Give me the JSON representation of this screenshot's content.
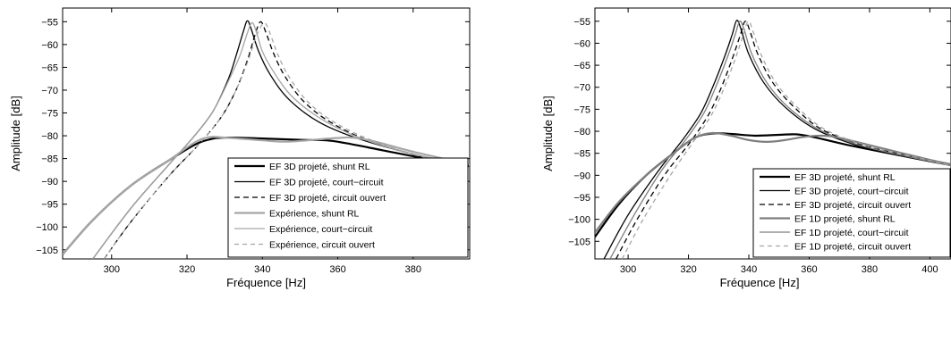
{
  "chart_data": [
    {
      "type": "line",
      "xlabel": "Fréquence [Hz]",
      "ylabel": "Amplitude [dB]",
      "xlim": [
        287,
        395
      ],
      "ylim": [
        -107,
        -52
      ],
      "xticks": [
        300,
        320,
        340,
        360,
        380
      ],
      "yticks": [
        -105,
        -100,
        -95,
        -90,
        -85,
        -80,
        -75,
        -70,
        -65,
        -60,
        -55
      ],
      "grid": false,
      "legend_position": "bottom-right",
      "series": [
        {
          "name": "EF 3D projeté, shunt RL",
          "color": "#000000",
          "dash": "solid",
          "width": 2.2,
          "x": [
            287,
            295,
            305,
            315,
            322,
            326,
            330,
            340,
            350,
            357,
            362,
            372,
            382,
            395
          ],
          "y": [
            -106,
            -98.5,
            -91,
            -85.5,
            -82,
            -80.8,
            -80.4,
            -80.6,
            -80.9,
            -81,
            -81.6,
            -83.2,
            -84.8,
            -86.6
          ]
        },
        {
          "name": "EF 3D projeté, court−circuit",
          "color": "#000000",
          "dash": "solid",
          "width": 1.3,
          "x": [
            295,
            305,
            315,
            322,
            327,
            331,
            333,
            335,
            336,
            337,
            339,
            342,
            347,
            355,
            365,
            380,
            395
          ],
          "y": [
            -107,
            -96,
            -86.5,
            -80,
            -74.5,
            -67.5,
            -62.5,
            -57,
            -54.8,
            -56.5,
            -61.5,
            -66.5,
            -72,
            -77,
            -80.5,
            -84,
            -86.6
          ]
        },
        {
          "name": "EF 3D projeté, circuit ouvert",
          "color": "#000000",
          "dash": "6,4",
          "width": 1.3,
          "x": [
            298,
            305,
            315,
            323,
            329,
            333,
            336,
            338,
            339.5,
            341,
            343,
            346,
            351,
            358,
            368,
            382,
            395
          ],
          "y": [
            -107,
            -99,
            -89,
            -82,
            -76,
            -70,
            -63.5,
            -58,
            -55,
            -57.5,
            -62,
            -67,
            -72.5,
            -77,
            -81,
            -84.5,
            -86.8
          ]
        },
        {
          "name": "Expérience, shunt RL",
          "color": "#a6a6a6",
          "dash": "solid",
          "width": 2.2,
          "x": [
            287,
            295,
            305,
            315,
            322,
            326,
            330,
            340,
            346,
            352,
            358,
            364,
            370,
            380,
            395
          ],
          "y": [
            -106,
            -98.5,
            -91,
            -85.5,
            -81.5,
            -80.3,
            -80.4,
            -81,
            -81.3,
            -81,
            -80.6,
            -80.4,
            -81.3,
            -83.5,
            -86.3
          ]
        },
        {
          "name": "Expérience, court−circuit",
          "color": "#a6a6a6",
          "dash": "solid",
          "width": 1.3,
          "x": [
            295,
            305,
            315,
            322,
            327,
            331,
            334,
            336,
            337.3,
            338.5,
            340,
            343,
            348,
            356,
            366,
            380,
            395
          ],
          "y": [
            -107,
            -96,
            -86.5,
            -80,
            -74.5,
            -68,
            -62.5,
            -57.5,
            -55.2,
            -57.5,
            -61.5,
            -66,
            -71.5,
            -76.5,
            -80.5,
            -84,
            -86.4
          ]
        },
        {
          "name": "Expérience, circuit ouvert",
          "color": "#a6a6a6",
          "dash": "5,4",
          "width": 1.3,
          "x": [
            298,
            305,
            315,
            323,
            329,
            333,
            336,
            338.5,
            340.5,
            342,
            344,
            347,
            352,
            359,
            369,
            382,
            395
          ],
          "y": [
            -107,
            -99,
            -89,
            -82,
            -76,
            -70,
            -64,
            -58,
            -55.3,
            -57.5,
            -62,
            -67,
            -72.5,
            -77,
            -81,
            -84.5,
            -86.6
          ]
        }
      ]
    },
    {
      "type": "line",
      "xlabel": "Fréquence [Hz]",
      "ylabel": "Amplitude [dB]",
      "xlim": [
        289,
        407
      ],
      "ylim": [
        -109,
        -52
      ],
      "xticks": [
        300,
        320,
        340,
        360,
        380,
        400
      ],
      "yticks": [
        -105,
        -100,
        -95,
        -90,
        -85,
        -80,
        -75,
        -70,
        -65,
        -60,
        -55
      ],
      "grid": false,
      "legend_position": "bottom-right",
      "series": [
        {
          "name": "EF 3D projeté, shunt RL",
          "color": "#000000",
          "dash": "solid",
          "width": 2.2,
          "x": [
            289,
            297,
            306,
            315,
            322,
            328,
            334,
            342,
            350,
            356,
            362,
            372,
            385,
            400,
            407
          ],
          "y": [
            -104,
            -96.5,
            -90,
            -85,
            -81.5,
            -80.5,
            -80.6,
            -81,
            -80.8,
            -80.7,
            -81.4,
            -83,
            -84.8,
            -86.8,
            -87.6
          ]
        },
        {
          "name": "EF 3D projeté, court−circuit",
          "color": "#000000",
          "dash": "solid",
          "width": 1.3,
          "x": [
            292,
            300,
            310,
            318,
            324,
            328,
            332,
            334.5,
            336,
            337.5,
            340,
            345,
            352,
            362,
            375,
            390,
            407
          ],
          "y": [
            -109,
            -99,
            -89,
            -82,
            -76,
            -70,
            -63,
            -58,
            -54.8,
            -57,
            -62.5,
            -69,
            -74.5,
            -79.5,
            -83,
            -85.5,
            -87.8
          ]
        },
        {
          "name": "EF 3D projeté, circuit ouvert",
          "color": "#000000",
          "dash": "6,4",
          "width": 1.3,
          "x": [
            296,
            303,
            312,
            320,
            326,
            330,
            334,
            337,
            338.8,
            340.5,
            343,
            348,
            355,
            364,
            377,
            392,
            407
          ],
          "y": [
            -109,
            -100,
            -90,
            -83,
            -77,
            -71.5,
            -64.5,
            -58.5,
            -55,
            -57.5,
            -62.5,
            -69,
            -74.5,
            -79.5,
            -83,
            -85.5,
            -87.8
          ]
        },
        {
          "name": "EF 1D projeté, shunt RL",
          "color": "#7f7f7f",
          "dash": "solid",
          "width": 2.2,
          "x": [
            289,
            297,
            306,
            315,
            322,
            328,
            334,
            340,
            346,
            352,
            358,
            364,
            370,
            385,
            400,
            407
          ],
          "y": [
            -103,
            -96,
            -90,
            -85,
            -81.5,
            -80.4,
            -81,
            -82,
            -82.4,
            -82,
            -81.3,
            -81,
            -81.5,
            -84,
            -86.5,
            -87.5
          ]
        },
        {
          "name": "EF 1D projeté, court−circuit",
          "color": "#7f7f7f",
          "dash": "solid",
          "width": 1.3,
          "x": [
            294,
            302,
            311,
            319,
            325,
            329,
            333,
            335.5,
            337,
            338.5,
            341,
            346,
            353,
            363,
            376,
            391,
            407
          ],
          "y": [
            -109,
            -99,
            -89,
            -82,
            -76,
            -70,
            -63,
            -58,
            -55,
            -57,
            -62.5,
            -69,
            -74.5,
            -79.5,
            -83,
            -85.5,
            -87.8
          ]
        },
        {
          "name": "EF 1D projeté, circuit ouvert",
          "color": "#a6a6a6",
          "dash": "5,4",
          "width": 1.3,
          "x": [
            298,
            305,
            314,
            321,
            327,
            331,
            335,
            338,
            339.8,
            341.5,
            344,
            349,
            356,
            365,
            378,
            393,
            407
          ],
          "y": [
            -109,
            -100,
            -90,
            -83,
            -77,
            -71.5,
            -64.5,
            -58.5,
            -55,
            -57.5,
            -62.5,
            -69,
            -74.5,
            -79.5,
            -83,
            -85.5,
            -87.8
          ]
        }
      ]
    }
  ]
}
